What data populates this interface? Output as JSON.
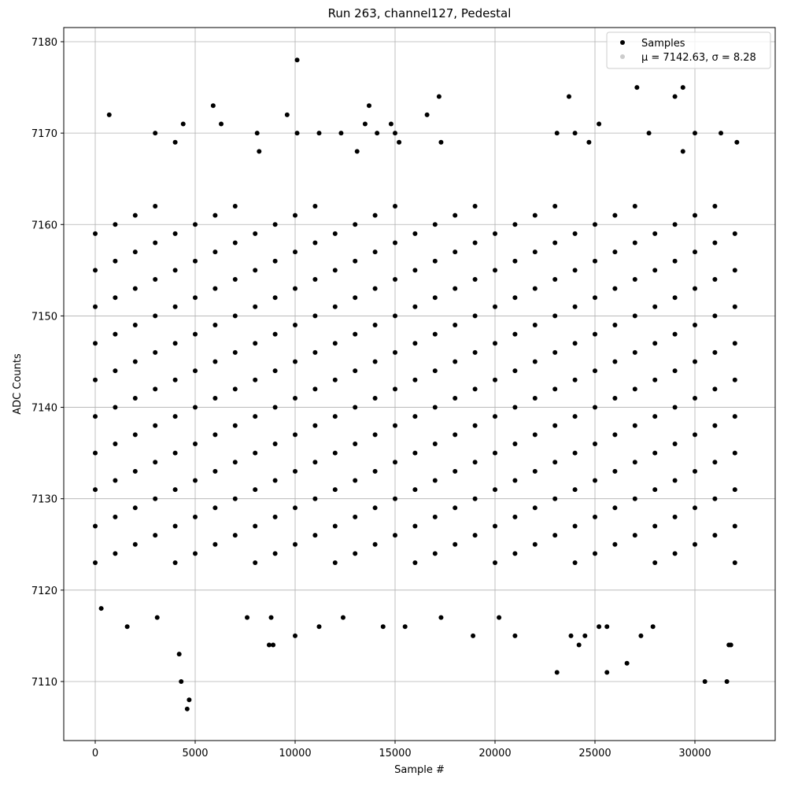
{
  "chart_data": {
    "type": "scatter",
    "title": "Run 263, channel127, Pedestal",
    "x_label": "Sample #",
    "y_label": "ADC Counts",
    "xlim": [
      -1575,
      34016
    ],
    "ylim": [
      7103.54,
      7181.55
    ],
    "xticks": [
      0,
      5000,
      10000,
      15000,
      20000,
      25000,
      30000
    ],
    "yticks": [
      7110,
      7120,
      7130,
      7140,
      7150,
      7160,
      7170,
      7180
    ],
    "grid": true,
    "legend": "upper right",
    "series": [
      {
        "name": "Samples",
        "color": "#000000",
        "x": [
          0,
          0,
          0,
          0,
          0,
          0,
          0,
          0,
          0,
          0,
          1000,
          1000,
          1000,
          1000,
          1000,
          1000,
          1000,
          1000,
          1000,
          1000,
          2000,
          2000,
          2000,
          2000,
          2000,
          2000,
          2000,
          2000,
          2000,
          2000,
          3000,
          3000,
          3000,
          3000,
          3000,
          3000,
          3000,
          3000,
          3000,
          3000,
          4000,
          4000,
          4000,
          4000,
          4000,
          4000,
          4000,
          4000,
          4000,
          4000,
          5000,
          5000,
          5000,
          5000,
          5000,
          5000,
          5000,
          5000,
          5000,
          5000,
          6000,
          6000,
          6000,
          6000,
          6000,
          6000,
          6000,
          6000,
          6000,
          6000,
          7000,
          7000,
          7000,
          7000,
          7000,
          7000,
          7000,
          7000,
          7000,
          7000,
          8000,
          8000,
          8000,
          8000,
          8000,
          8000,
          8000,
          8000,
          8000,
          8000,
          9000,
          9000,
          9000,
          9000,
          9000,
          9000,
          9000,
          9000,
          9000,
          9000,
          10000,
          10000,
          10000,
          10000,
          10000,
          10000,
          10000,
          10000,
          10000,
          10000,
          11000,
          11000,
          11000,
          11000,
          11000,
          11000,
          11000,
          11000,
          11000,
          11000,
          12000,
          12000,
          12000,
          12000,
          12000,
          12000,
          12000,
          12000,
          12000,
          12000,
          13000,
          13000,
          13000,
          13000,
          13000,
          13000,
          13000,
          13000,
          13000,
          13000,
          14000,
          14000,
          14000,
          14000,
          14000,
          14000,
          14000,
          14000,
          14000,
          14000,
          15000,
          15000,
          15000,
          15000,
          15000,
          15000,
          15000,
          15000,
          15000,
          15000,
          16000,
          16000,
          16000,
          16000,
          16000,
          16000,
          16000,
          16000,
          16000,
          16000,
          17000,
          17000,
          17000,
          17000,
          17000,
          17000,
          17000,
          17000,
          17000,
          17000,
          18000,
          18000,
          18000,
          18000,
          18000,
          18000,
          18000,
          18000,
          18000,
          18000,
          19000,
          19000,
          19000,
          19000,
          19000,
          19000,
          19000,
          19000,
          19000,
          19000,
          20000,
          20000,
          20000,
          20000,
          20000,
          20000,
          20000,
          20000,
          20000,
          20000,
          21000,
          21000,
          21000,
          21000,
          21000,
          21000,
          21000,
          21000,
          21000,
          21000,
          22000,
          22000,
          22000,
          22000,
          22000,
          22000,
          22000,
          22000,
          22000,
          22000,
          23000,
          23000,
          23000,
          23000,
          23000,
          23000,
          23000,
          23000,
          23000,
          23000,
          24000,
          24000,
          24000,
          24000,
          24000,
          24000,
          24000,
          24000,
          24000,
          24000,
          25000,
          25000,
          25000,
          25000,
          25000,
          25000,
          25000,
          25000,
          25000,
          25000,
          26000,
          26000,
          26000,
          26000,
          26000,
          26000,
          26000,
          26000,
          26000,
          26000,
          27000,
          27000,
          27000,
          27000,
          27000,
          27000,
          27000,
          27000,
          27000,
          27000,
          28000,
          28000,
          28000,
          28000,
          28000,
          28000,
          28000,
          28000,
          28000,
          28000,
          29000,
          29000,
          29000,
          29000,
          29000,
          29000,
          29000,
          29000,
          29000,
          29000,
          30000,
          30000,
          30000,
          30000,
          30000,
          30000,
          30000,
          30000,
          30000,
          30000,
          31000,
          31000,
          31000,
          31000,
          31000,
          31000,
          31000,
          31000,
          31000,
          31000,
          32000,
          32000,
          32000,
          32000,
          32000,
          32000,
          32000,
          32000,
          32000,
          32000,
          10100,
          700,
          5900,
          13700,
          17200,
          23700,
          27100,
          29400,
          29000,
          9600,
          16600,
          3000,
          8100,
          10100,
          4400,
          6300,
          13500,
          14800,
          25200,
          11200,
          12300,
          14100,
          15000,
          23100,
          24000,
          27700,
          30000,
          31300,
          32100,
          4000,
          15200,
          17300,
          24700,
          8200,
          13100,
          29400,
          4600,
          4700,
          4300,
          30500,
          31600,
          4200,
          23100,
          25600,
          26600,
          8700,
          8900,
          24200,
          31800,
          31700,
          10000,
          18900,
          21000,
          23800,
          24500,
          27300,
          300,
          1600,
          11200,
          14400,
          15500,
          25200,
          25600,
          27900,
          3100,
          7600,
          12400,
          20200,
          17300,
          8800
        ],
        "values": [
          7123,
          7127,
          7131,
          7135,
          7139,
          7143,
          7147,
          7151,
          7155,
          7159,
          7124,
          7128,
          7132,
          7136,
          7140,
          7144,
          7148,
          7152,
          7156,
          7160,
          7125,
          7129,
          7133,
          7137,
          7141,
          7145,
          7149,
          7153,
          7157,
          7161,
          7126,
          7130,
          7134,
          7138,
          7142,
          7146,
          7150,
          7154,
          7158,
          7162,
          7123,
          7127,
          7131,
          7135,
          7139,
          7143,
          7147,
          7151,
          7155,
          7159,
          7124,
          7128,
          7132,
          7136,
          7140,
          7144,
          7148,
          7152,
          7156,
          7160,
          7125,
          7129,
          7133,
          7137,
          7141,
          7145,
          7149,
          7153,
          7157,
          7161,
          7126,
          7130,
          7134,
          7138,
          7142,
          7146,
          7150,
          7154,
          7158,
          7162,
          7123,
          7127,
          7131,
          7135,
          7139,
          7143,
          7147,
          7151,
          7155,
          7159,
          7124,
          7128,
          7132,
          7136,
          7140,
          7144,
          7148,
          7152,
          7156,
          7160,
          7125,
          7129,
          7133,
          7137,
          7141,
          7145,
          7149,
          7153,
          7157,
          7161,
          7126,
          7130,
          7134,
          7138,
          7142,
          7146,
          7150,
          7154,
          7158,
          7162,
          7123,
          7127,
          7131,
          7135,
          7139,
          7143,
          7147,
          7151,
          7155,
          7159,
          7124,
          7128,
          7132,
          7136,
          7140,
          7144,
          7148,
          7152,
          7156,
          7160,
          7125,
          7129,
          7133,
          7137,
          7141,
          7145,
          7149,
          7153,
          7157,
          7161,
          7126,
          7130,
          7134,
          7138,
          7142,
          7146,
          7150,
          7154,
          7158,
          7162,
          7123,
          7127,
          7131,
          7135,
          7139,
          7143,
          7147,
          7151,
          7155,
          7159,
          7124,
          7128,
          7132,
          7136,
          7140,
          7144,
          7148,
          7152,
          7156,
          7160,
          7125,
          7129,
          7133,
          7137,
          7141,
          7145,
          7149,
          7153,
          7157,
          7161,
          7126,
          7130,
          7134,
          7138,
          7142,
          7146,
          7150,
          7154,
          7158,
          7162,
          7123,
          7127,
          7131,
          7135,
          7139,
          7143,
          7147,
          7151,
          7155,
          7159,
          7124,
          7128,
          7132,
          7136,
          7140,
          7144,
          7148,
          7152,
          7156,
          7160,
          7125,
          7129,
          7133,
          7137,
          7141,
          7145,
          7149,
          7153,
          7157,
          7161,
          7126,
          7130,
          7134,
          7138,
          7142,
          7146,
          7150,
          7154,
          7158,
          7162,
          7123,
          7127,
          7131,
          7135,
          7139,
          7143,
          7147,
          7151,
          7155,
          7159,
          7124,
          7128,
          7132,
          7136,
          7140,
          7144,
          7148,
          7152,
          7156,
          7160,
          7125,
          7129,
          7133,
          7137,
          7141,
          7145,
          7149,
          7153,
          7157,
          7161,
          7126,
          7130,
          7134,
          7138,
          7142,
          7146,
          7150,
          7154,
          7158,
          7162,
          7123,
          7127,
          7131,
          7135,
          7139,
          7143,
          7147,
          7151,
          7155,
          7159,
          7124,
          7128,
          7132,
          7136,
          7140,
          7144,
          7148,
          7152,
          7156,
          7160,
          7125,
          7129,
          7133,
          7137,
          7141,
          7145,
          7149,
          7153,
          7157,
          7161,
          7126,
          7130,
          7134,
          7138,
          7142,
          7146,
          7150,
          7154,
          7158,
          7162,
          7123,
          7127,
          7131,
          7135,
          7139,
          7143,
          7147,
          7151,
          7155,
          7159,
          7178,
          7172,
          7173,
          7173,
          7174,
          7174,
          7175,
          7175,
          7174,
          7172,
          7172,
          7170,
          7170,
          7170,
          7171,
          7171,
          7171,
          7171,
          7171,
          7170,
          7170,
          7170,
          7170,
          7170,
          7170,
          7170,
          7170,
          7170,
          7169,
          7169,
          7169,
          7169,
          7169,
          7168,
          7168,
          7168,
          7107,
          7108,
          7110,
          7110,
          7110,
          7113,
          7111,
          7111,
          7112,
          7114,
          7114,
          7114,
          7114,
          7114,
          7115,
          7115,
          7115,
          7115,
          7115,
          7115,
          7118,
          7116,
          7116,
          7116,
          7116,
          7116,
          7116,
          7116,
          7117,
          7117,
          7117,
          7117,
          7117,
          7117
        ]
      },
      {
        "name": "μ = 7142.63, σ = 8.28",
        "color": "#cccccc",
        "x": [],
        "values": []
      }
    ]
  }
}
